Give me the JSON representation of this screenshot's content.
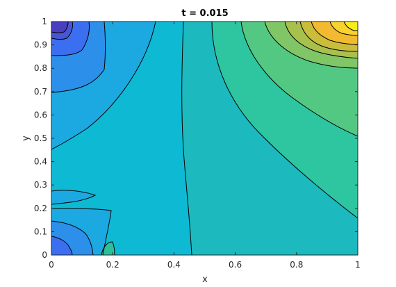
{
  "chart_data": {
    "type": "contourf",
    "title": "t = 0.015",
    "xlabel": "x",
    "ylabel": "y",
    "xlim": [
      0,
      1
    ],
    "ylim": [
      0,
      1
    ],
    "x_ticks": [
      "0",
      "0.2",
      "0.4",
      "0.6",
      "0.8",
      "1"
    ],
    "y_ticks": [
      "0",
      "0.1",
      "0.2",
      "0.3",
      "0.4",
      "0.5",
      "0.6",
      "0.7",
      "0.8",
      "0.9",
      "1"
    ],
    "colormap": "parula",
    "grid": false,
    "legend": "none",
    "colors": {
      "axis": "#262626",
      "contour_line": "#000000"
    },
    "regions": [
      {
        "name": "base-teal",
        "color": "#1CB9BF"
      },
      {
        "name": "middle-band",
        "color": "#0EBAD3"
      },
      {
        "name": "left-top-band",
        "color": "#1CA8E0"
      },
      {
        "name": "left-top-deep-1",
        "color": "#2C8FEA"
      },
      {
        "name": "left-top-deep-2",
        "color": "#3C6FF0"
      },
      {
        "name": "left-top-deep-3",
        "color": "#4756D4"
      },
      {
        "name": "left-top-deep-4",
        "color": "#4A3FBF"
      },
      {
        "name": "left-bottom-band",
        "color": "#1CA8E0"
      },
      {
        "name": "left-bottom-deep-1",
        "color": "#2C8FEA"
      },
      {
        "name": "left-bottom-deep-2",
        "color": "#3C6FF0"
      },
      {
        "name": "left-bottom-green-spot",
        "color": "#2CC09A"
      },
      {
        "name": "right-band-1",
        "color": "#2DC6A1"
      },
      {
        "name": "right-band-2",
        "color": "#52C883"
      },
      {
        "name": "right-band-3",
        "color": "#80C667"
      },
      {
        "name": "right-band-4",
        "color": "#A8C14D"
      },
      {
        "name": "right-band-5",
        "color": "#CBBD3C"
      },
      {
        "name": "right-band-6",
        "color": "#F2BA30"
      },
      {
        "name": "right-band-7",
        "color": "#F9D22C"
      },
      {
        "name": "right-peak",
        "color": "#F6EC1B"
      }
    ]
  }
}
